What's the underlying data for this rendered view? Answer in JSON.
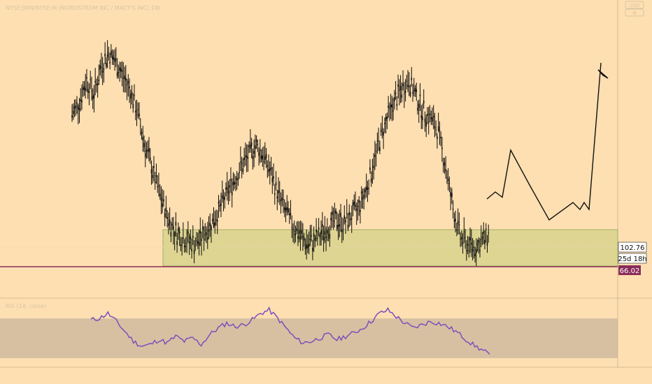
{
  "header": {
    "symbol_line": "NYSE:JWN/NYSE:M (NORDSTROM INC / MACY'S INC) 1W",
    "currency_badge": "USD",
    "settings_badge": "⚙"
  },
  "colors": {
    "background": "#fedfb1",
    "candle": "#0b0b0b",
    "zone_fill": "#d9d48e",
    "zone_border": "#8aa85a",
    "support_line": "#8a2c5a",
    "last_price_badge_bg": "#ffffff",
    "support_badge_bg": "#8a2c5a",
    "rsi_line": "#7b4fbd",
    "rsi_band": "#cdb89e"
  },
  "price_panel": {
    "last_price": "102.76",
    "countdown": "25d 18h",
    "support_value": "66.02"
  },
  "rsi_panel": {
    "title": "RSI (14, close)"
  },
  "chart_data": {
    "type": "line",
    "series": [
      {
        "values": [
          150,
          158,
          170,
          162,
          178,
          186,
          180,
          172,
          164,
          150,
          132,
          118,
          104,
          92,
          84,
          80,
          78,
          76,
          82,
          88,
          95,
          104,
          112,
          120,
          126,
          133,
          128,
          118,
          106,
          96,
          88,
          82,
          76,
          78,
          82,
          86,
          90,
          88,
          92,
          96,
          106,
          120,
          136,
          148,
          158,
          165,
          170,
          160,
          152,
          148,
          140,
          120,
          96,
          80,
          76,
          74,
          78,
          82
        ]
      }
    ],
    "projection": [
      102,
      106,
      103,
      130,
      110,
      90,
      100,
      96,
      100,
      96,
      180
    ],
    "support_zone": [
      66.02,
      115
    ],
    "rsi_values": [
      66,
      68,
      74,
      64,
      52,
      40,
      34,
      36,
      42,
      38,
      46,
      40,
      44,
      36,
      48,
      56,
      62,
      58,
      60,
      66,
      74,
      78,
      68,
      56,
      44,
      38,
      40,
      44,
      48,
      42,
      46,
      50,
      56,
      64,
      74,
      78,
      70,
      62,
      56,
      60,
      64,
      62,
      58,
      52,
      44,
      36,
      30,
      24
    ],
    "rsi_bands": [
      70,
      30
    ]
  }
}
